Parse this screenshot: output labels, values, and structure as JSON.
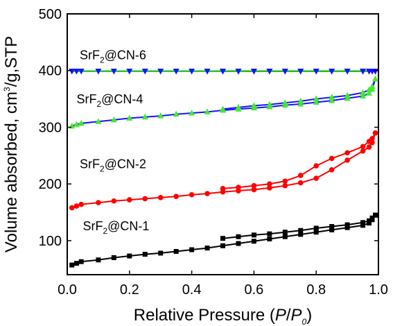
{
  "chart_data": {
    "type": "line",
    "title": "",
    "xlabel": {
      "prefix": "Relative Pressure (",
      "var": "P",
      "slash": "/",
      "var2": "P",
      "sub": "0",
      "suffix": ")"
    },
    "ylabel": {
      "prefix": "Volume absorbed, cm",
      "sup": "3",
      "suffix": "/g,STP"
    },
    "xlim": [
      0.0,
      1.0
    ],
    "ylim": [
      40,
      500
    ],
    "x_ticks": [
      "0.0",
      "0.2",
      "0.4",
      "0.6",
      "0.8",
      "1.0"
    ],
    "x_tick_values": [
      0.0,
      0.2,
      0.4,
      0.6,
      0.8,
      1.0
    ],
    "y_ticks": [
      "100",
      "200",
      "300",
      "400",
      "500"
    ],
    "y_tick_values": [
      100,
      200,
      300,
      400,
      500
    ],
    "grid": false,
    "legend": "none",
    "series": [
      {
        "name": "SrF2@CN-6",
        "label_pre": "SrF",
        "label_sub": "2",
        "label_post": "@CN-6",
        "label_at": {
          "x": 0.04,
          "y": 420
        },
        "marker": "triangle-down",
        "colors": {
          "line": "#00b400",
          "marker": "#1414ff"
        },
        "adsorption": {
          "x": [
            0.015,
            0.03,
            0.045,
            0.1,
            0.15,
            0.2,
            0.25,
            0.3,
            0.35,
            0.4,
            0.45,
            0.5,
            0.55,
            0.6,
            0.65,
            0.7,
            0.75,
            0.8,
            0.85,
            0.9,
            0.95,
            0.97,
            0.98,
            0.99
          ],
          "y": [
            399,
            399,
            399,
            399,
            399,
            399,
            399,
            399,
            399,
            399,
            399,
            399,
            399,
            399,
            399,
            399,
            399,
            399,
            399,
            399,
            399,
            399,
            399,
            399
          ]
        },
        "desorption": {
          "x": [
            0.99,
            0.98,
            0.97,
            0.95,
            0.9,
            0.85,
            0.8,
            0.75,
            0.7,
            0.65,
            0.6,
            0.55,
            0.5
          ],
          "y": [
            399,
            399,
            399,
            399,
            399,
            399,
            399,
            399,
            399,
            399,
            399,
            399,
            399
          ]
        }
      },
      {
        "name": "SrF2@CN-4",
        "label_pre": "SrF",
        "label_sub": "2",
        "label_post": "@CN-4",
        "label_at": {
          "x": 0.03,
          "y": 342
        },
        "marker": "triangle-up",
        "colors": {
          "line": "#1414ff",
          "marker": "#44e830"
        },
        "adsorption": {
          "x": [
            0.015,
            0.03,
            0.045,
            0.1,
            0.15,
            0.2,
            0.25,
            0.3,
            0.35,
            0.4,
            0.45,
            0.5,
            0.55,
            0.6,
            0.65,
            0.7,
            0.75,
            0.8,
            0.85,
            0.9,
            0.95,
            0.97,
            0.98,
            0.99
          ],
          "y": [
            302,
            305,
            307,
            310,
            313,
            316,
            318,
            320,
            323,
            325,
            327,
            330,
            332,
            334,
            336,
            339,
            341,
            344,
            347,
            351,
            355,
            360,
            367,
            385
          ]
        },
        "desorption": {
          "x": [
            0.99,
            0.98,
            0.97,
            0.95,
            0.9,
            0.85,
            0.8,
            0.75,
            0.7,
            0.65,
            0.6,
            0.55,
            0.5
          ],
          "y": [
            385,
            372,
            366,
            361,
            356,
            353,
            350,
            346,
            343,
            340,
            338,
            335,
            332
          ]
        }
      },
      {
        "name": "SrF2@CN-2",
        "label_pre": "SrF",
        "label_sub": "2",
        "label_post": "@CN-2",
        "label_at": {
          "x": 0.04,
          "y": 228
        },
        "marker": "circle",
        "colors": {
          "line": "#ff0000",
          "marker": "#ff0000"
        },
        "adsorption": {
          "x": [
            0.015,
            0.03,
            0.045,
            0.1,
            0.15,
            0.2,
            0.25,
            0.3,
            0.35,
            0.4,
            0.45,
            0.5,
            0.55,
            0.6,
            0.65,
            0.7,
            0.75,
            0.8,
            0.85,
            0.9,
            0.95,
            0.97,
            0.98,
            0.99
          ],
          "y": [
            158,
            161,
            164,
            167,
            170,
            172,
            174,
            176,
            178,
            181,
            183,
            186,
            188,
            190,
            193,
            197,
            202,
            210,
            225,
            242,
            258,
            265,
            273,
            290
          ]
        },
        "desorption": {
          "x": [
            0.99,
            0.98,
            0.97,
            0.95,
            0.9,
            0.85,
            0.8,
            0.75,
            0.7,
            0.65,
            0.6,
            0.55,
            0.5
          ],
          "y": [
            290,
            280,
            275,
            266,
            255,
            245,
            232,
            215,
            205,
            200,
            197,
            194,
            192
          ]
        }
      },
      {
        "name": "SrF2@CN-1",
        "label_pre": "SrF",
        "label_sub": "2",
        "label_post": "@CN-1",
        "label_at": {
          "x": 0.05,
          "y": 118
        },
        "marker": "square",
        "colors": {
          "line": "#000000",
          "marker": "#000000"
        },
        "adsorption": {
          "x": [
            0.015,
            0.03,
            0.045,
            0.1,
            0.15,
            0.2,
            0.25,
            0.3,
            0.35,
            0.4,
            0.45,
            0.5,
            0.55,
            0.6,
            0.65,
            0.7,
            0.75,
            0.8,
            0.85,
            0.9,
            0.95,
            0.97,
            0.98,
            0.99
          ],
          "y": [
            57,
            60,
            63,
            66,
            70,
            73,
            76,
            78,
            81,
            84,
            87,
            91,
            95,
            99,
            103,
            107,
            111,
            115,
            119,
            123,
            127,
            131,
            137,
            145
          ]
        },
        "desorption": {
          "x": [
            0.99,
            0.98,
            0.97,
            0.95,
            0.9,
            0.85,
            0.8,
            0.75,
            0.7,
            0.65,
            0.6,
            0.55,
            0.5
          ],
          "y": [
            145,
            140,
            135,
            132,
            128,
            125,
            122,
            118,
            115,
            112,
            110,
            107,
            104
          ]
        }
      }
    ]
  }
}
